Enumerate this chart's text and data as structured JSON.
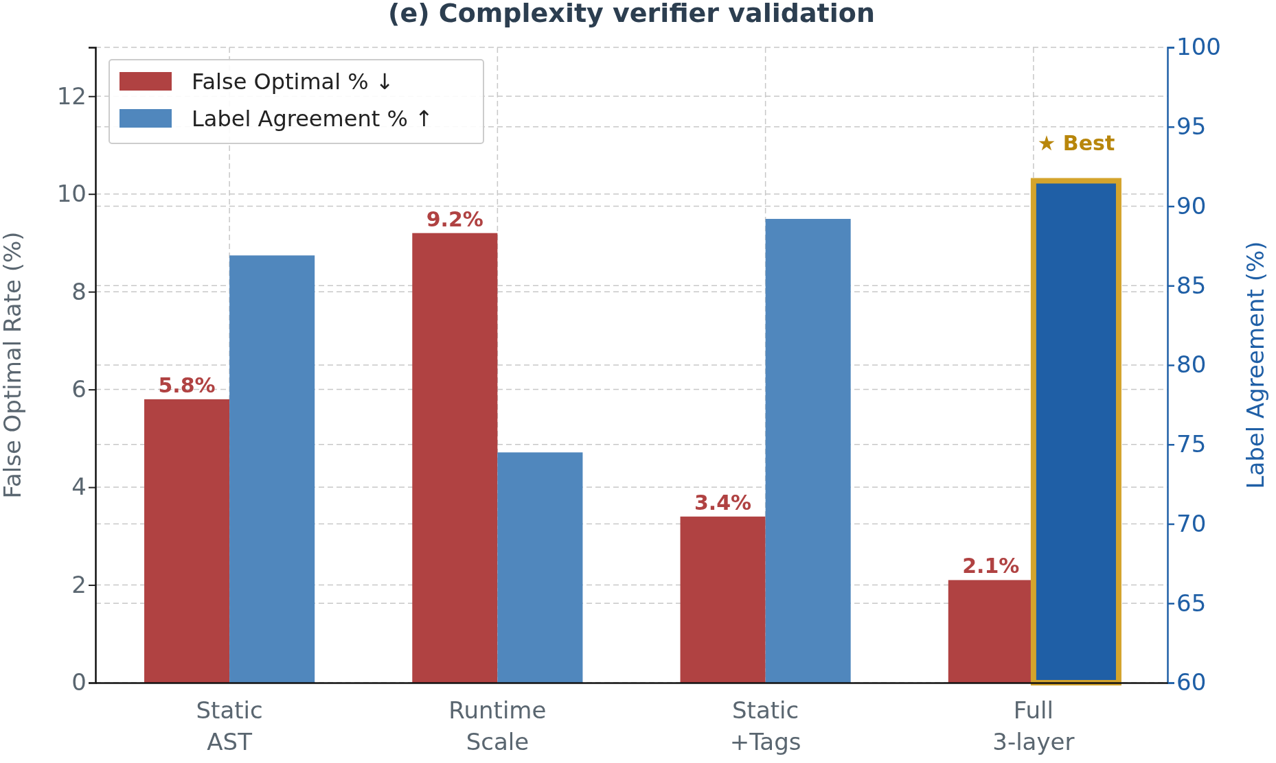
{
  "chart_data": {
    "type": "bar",
    "title": "(e) Complexity verifier validation",
    "ylabel": "False Optimal Rate (%)",
    "y2label": "Label Agreement (%)",
    "categories": [
      "Static\nAST",
      "Runtime\nScale",
      "Static\n+Tags",
      "Full\n3-layer"
    ],
    "series": [
      {
        "name": "False Optimal % ↓",
        "color": "#b04242",
        "values": [
          5.8,
          9.2,
          3.4,
          2.1
        ],
        "value_labels": [
          "5.8%",
          "9.2%",
          "3.4%",
          "2.1%"
        ]
      },
      {
        "name": "Label Agreement % ↑",
        "color": "#5087bd",
        "colors": [
          "#5087bd",
          "#5087bd",
          "#5087bd",
          "#1f5fa6"
        ],
        "values": [
          86.9,
          74.5,
          89.2,
          91.6
        ],
        "axis": "y2"
      }
    ],
    "ylim": [
      0,
      13
    ],
    "yticks": [
      0,
      2,
      4,
      6,
      8,
      10,
      12
    ],
    "y2lim": [
      60,
      100
    ],
    "y2ticks": [
      60,
      65,
      70,
      75,
      80,
      85,
      90,
      95,
      100
    ],
    "annotations": [
      "★ Best"
    ],
    "grid": true,
    "legend": "top left"
  }
}
